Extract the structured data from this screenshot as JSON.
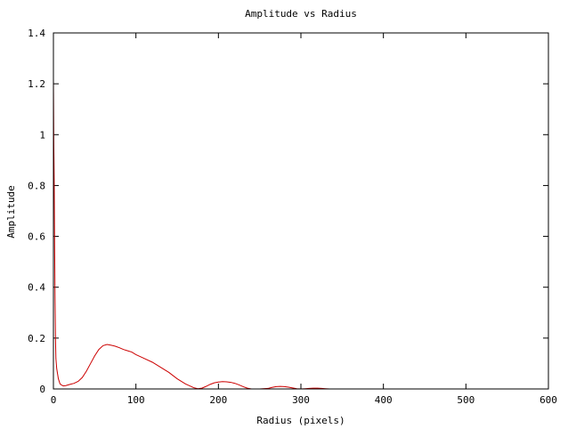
{
  "chart_data": {
    "type": "line",
    "title": "Amplitude vs Radius",
    "xlabel": "Radius (pixels)",
    "ylabel": "Amplitude",
    "xlim": [
      0,
      600
    ],
    "ylim": [
      0,
      1.4
    ],
    "xticks": [
      0,
      100,
      200,
      300,
      400,
      500,
      600
    ],
    "yticks": [
      0,
      0.2,
      0.4,
      0.6,
      0.8,
      1,
      1.2,
      1.4
    ],
    "xtick_labels": [
      "0",
      "100",
      "200",
      "300",
      "400",
      "500",
      "600"
    ],
    "ytick_labels": [
      "0",
      "0.2",
      "0.4",
      "0.6",
      "0.8",
      "1",
      "1.2",
      "1.4"
    ],
    "grid": false,
    "legend": "none",
    "series": [
      {
        "color": "#cc0000",
        "x": [
          0,
          0.5,
          1,
          1.5,
          2,
          2.5,
          3,
          4,
          5,
          6,
          7,
          8,
          10,
          12,
          15,
          20,
          25,
          30,
          35,
          40,
          45,
          50,
          55,
          60,
          65,
          70,
          75,
          80,
          85,
          90,
          95,
          100,
          110,
          120,
          130,
          140,
          150,
          160,
          170,
          175,
          180,
          185,
          190,
          195,
          200,
          205,
          210,
          215,
          220,
          225,
          230,
          235,
          240,
          250,
          260,
          265,
          270,
          275,
          280,
          285,
          290,
          295,
          300,
          305,
          310,
          315,
          320,
          325,
          330,
          335,
          340,
          350,
          400,
          500,
          600
        ],
        "y": [
          1.22,
          0.95,
          0.8,
          0.55,
          0.35,
          0.2,
          0.12,
          0.08,
          0.06,
          0.04,
          0.03,
          0.02,
          0.015,
          0.012,
          0.013,
          0.018,
          0.022,
          0.03,
          0.045,
          0.07,
          0.1,
          0.13,
          0.155,
          0.17,
          0.175,
          0.172,
          0.168,
          0.162,
          0.155,
          0.15,
          0.145,
          0.135,
          0.12,
          0.105,
          0.085,
          0.065,
          0.04,
          0.02,
          0.005,
          0.001,
          0.003,
          0.01,
          0.018,
          0.024,
          0.027,
          0.029,
          0.028,
          0.026,
          0.022,
          0.016,
          0.009,
          0.003,
          0.0,
          0.0,
          0.002,
          0.006,
          0.009,
          0.01,
          0.009,
          0.007,
          0.004,
          0.001,
          0.0,
          0.001,
          0.002,
          0.003,
          0.003,
          0.002,
          0.001,
          0.0,
          0.0,
          0.0,
          0.0,
          0.0,
          0.0
        ]
      }
    ]
  }
}
